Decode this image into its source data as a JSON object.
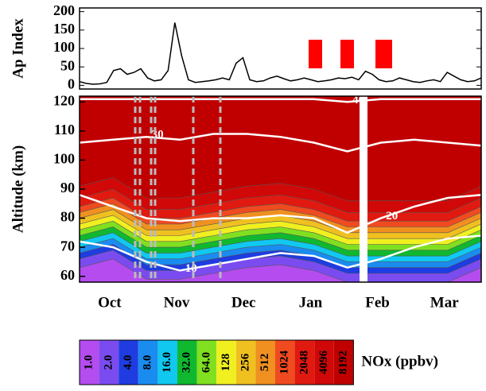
{
  "chart_data": [
    {
      "type": "line",
      "ylabel": "Ap Index",
      "color": "#000000",
      "ylim": [
        -10,
        210
      ],
      "yticks": [
        0,
        50,
        100,
        150,
        200
      ],
      "values": [
        10,
        5,
        3,
        4,
        8,
        40,
        45,
        30,
        35,
        45,
        20,
        12,
        15,
        40,
        170,
        80,
        15,
        8,
        10,
        12,
        15,
        20,
        15,
        60,
        75,
        15,
        10,
        12,
        20,
        25,
        18,
        12,
        15,
        20,
        15,
        10,
        12,
        15,
        20,
        18,
        22,
        15,
        38,
        30,
        15,
        10,
        12,
        20,
        15,
        10,
        8,
        12,
        15,
        10,
        35,
        25,
        15,
        10,
        12,
        20
      ]
    },
    {
      "type": "contour",
      "ylabel": "Altitude (km)",
      "categories": [
        "Oct",
        "Nov",
        "Dec",
        "Jan",
        "Feb",
        "Mar"
      ],
      "ylim": [
        58,
        122
      ],
      "yticks": [
        60,
        70,
        80,
        90,
        100,
        110,
        120
      ],
      "colorbar_label": "NOx (ppbv)",
      "levels": [
        {
          "value": 1,
          "label": "1.0"
        },
        {
          "value": 2,
          "label": "2.0"
        },
        {
          "value": 4,
          "label": "4.0"
        },
        {
          "value": 8,
          "label": "8.0"
        },
        {
          "value": 16,
          "label": "16.0"
        },
        {
          "value": 32,
          "label": "32.0"
        },
        {
          "value": 64,
          "label": "64.0"
        },
        128,
        256,
        512,
        1024,
        2048,
        4096,
        8192
      ],
      "colors": [
        "#b44cf0",
        "#7a4cf0",
        "#1e3ce0",
        "#1a8cf0",
        "#10c8f0",
        "#10b830",
        "#80e020",
        "#f0f020",
        "#f0c020",
        "#f09020",
        "#f04a20",
        "#e01a10",
        "#d00808",
        "#c00000"
      ],
      "boundaries": [
        [
          63,
          66,
          59,
          59,
          61,
          63,
          64,
          62,
          58,
          58,
          58,
          58,
          63
        ],
        [
          66,
          69,
          62,
          62,
          64,
          66,
          67,
          65,
          61,
          61,
          61,
          61,
          66
        ],
        [
          68,
          71,
          64,
          64,
          66,
          68,
          69,
          67,
          63,
          63,
          63,
          63,
          68
        ],
        [
          70,
          73,
          66,
          66,
          68,
          70,
          71,
          69,
          65,
          65,
          65,
          65,
          70
        ],
        [
          72,
          75,
          68,
          68,
          70,
          72,
          73,
          71,
          67,
          67,
          67,
          67,
          72
        ],
        [
          74,
          77,
          70,
          70,
          72,
          74,
          75,
          73,
          69,
          69,
          69,
          69,
          74
        ],
        [
          76,
          79,
          72,
          72,
          74,
          76,
          77,
          75,
          71,
          71,
          71,
          71,
          76
        ],
        [
          78,
          81,
          74,
          74,
          76,
          78,
          79,
          77,
          73,
          73,
          73,
          73,
          78
        ],
        [
          80,
          83,
          76,
          76,
          78,
          80,
          81,
          79,
          75,
          75,
          75,
          75,
          80
        ],
        [
          82,
          85,
          78,
          78,
          80,
          82,
          83,
          81,
          77,
          77,
          77,
          77,
          82
        ],
        [
          84,
          87,
          80,
          80,
          82,
          84,
          85,
          83,
          79,
          79,
          79,
          79,
          84
        ],
        [
          87,
          90,
          83,
          83,
          85,
          87,
          88,
          86,
          82,
          82,
          82,
          82,
          87
        ],
        [
          91,
          94,
          87,
          87,
          89,
          91,
          92,
          90,
          86,
          86,
          86,
          86,
          91
        ]
      ],
      "contours": [
        {
          "label": 40,
          "values": [
            121,
            121,
            121,
            121,
            121,
            121,
            121,
            121,
            120,
            121,
            121,
            121,
            121
          ]
        },
        {
          "label": 30,
          "values": [
            106,
            107,
            108,
            107,
            109,
            109,
            108,
            106,
            103,
            106,
            107,
            106,
            105
          ]
        },
        {
          "label": 20,
          "values": [
            88,
            84,
            80,
            79,
            80,
            80,
            81,
            80,
            75,
            80,
            84,
            87,
            88
          ]
        },
        {
          "label": 10,
          "values": [
            72,
            70,
            65,
            62,
            64,
            66,
            68,
            67,
            63,
            66,
            70,
            73,
            74
          ]
        }
      ]
    }
  ]
}
